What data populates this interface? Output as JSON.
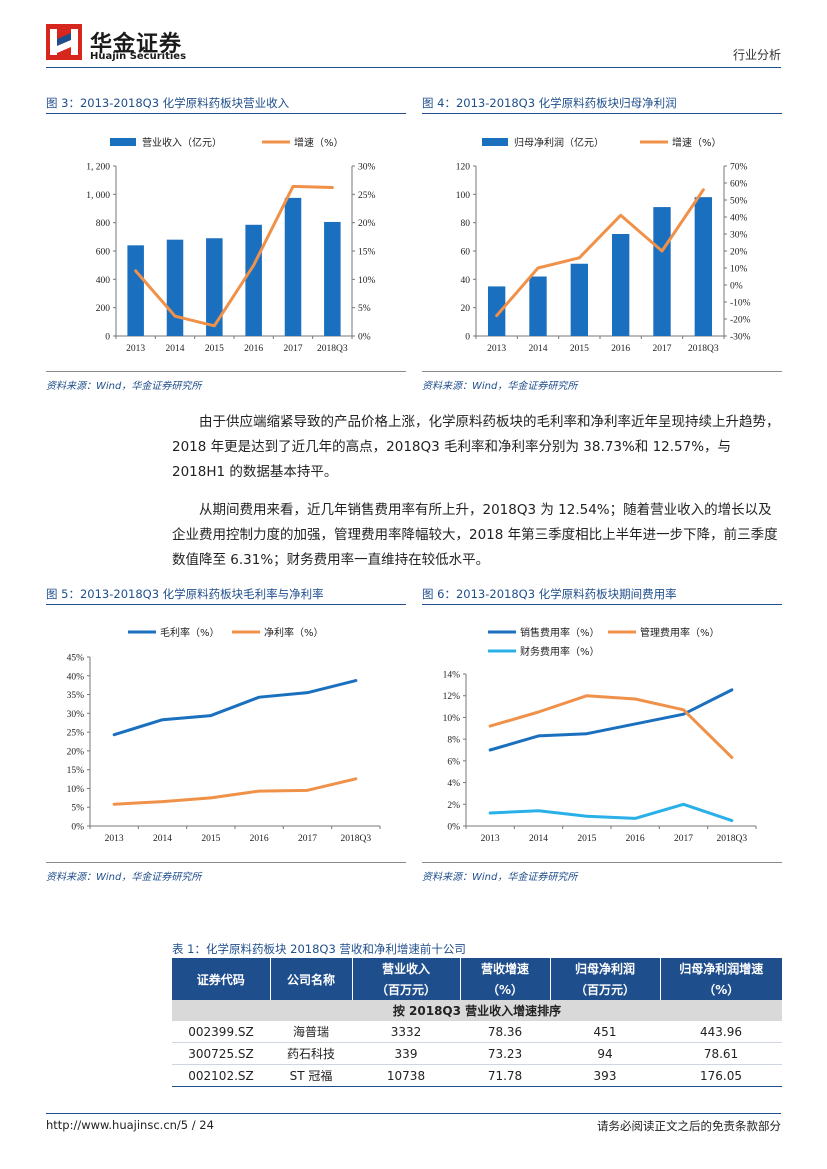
{
  "header": {
    "brand_cn": "华金证券",
    "brand_en": "Huajin Securities",
    "report_type": "行业分析"
  },
  "colors": {
    "navy": "#1f4e8c",
    "bar": "#1a6fbf",
    "orange": "#f0914a",
    "cyan": "#2ab0e8"
  },
  "figures": {
    "fig3": {
      "title": "图 3：2013-2018Q3 化学原料药板块营业收入",
      "source": "资料来源：Wind，华金证券研究所"
    },
    "fig4": {
      "title": "图 4：2013-2018Q3 化学原料药板块归母净利润",
      "source": "资料来源：Wind，华金证券研究所"
    },
    "fig5": {
      "title": "图 5：2013-2018Q3 化学原料药板块毛利率与净利率",
      "source": "资料来源：Wind，华金证券研究所"
    },
    "fig6": {
      "title": "图 6：2013-2018Q3 化学原料药板块期间费用率",
      "source": "资料来源：Wind，华金证券研究所"
    }
  },
  "paragraphs": {
    "p1": "由于供应端缩紧导致的产品价格上涨，化学原料药板块的毛利率和净利率近年呈现持续上升趋势，2018 年更是达到了近几年的高点，2018Q3 毛利率和净利率分别为 38.73%和 12.57%，与 2018H1 的数据基本持平。",
    "p2": "从期间费用来看，近几年销售费用率有所上升，2018Q3 为 12.54%；随着营业收入的增长以及企业费用控制力度的加强，管理费用率降幅较大，2018 年第三季度相比上半年进一步下降，前三季度数值降至 6.31%；财务费用率一直维持在较低水平。"
  },
  "chart_data": [
    {
      "id": "fig3",
      "type": "bar+line",
      "categories": [
        "2013",
        "2014",
        "2015",
        "2016",
        "2017",
        "2018Q3"
      ],
      "series": [
        {
          "name": "营业收入（亿元）",
          "type": "bar",
          "axis": "left",
          "values": [
            640,
            680,
            690,
            785,
            975,
            805
          ]
        },
        {
          "name": "增速（%）",
          "type": "line",
          "axis": "right",
          "values": [
            11.5,
            3.5,
            1.8,
            12.5,
            26.4,
            26.2
          ]
        }
      ],
      "left_axis": {
        "ticks": [
          "0",
          "200",
          "400",
          "600",
          "800",
          "1, 000",
          "1, 200"
        ],
        "range": [
          0,
          1200
        ]
      },
      "right_axis": {
        "ticks": [
          "0%",
          "5%",
          "10%",
          "15%",
          "20%",
          "25%",
          "30%"
        ],
        "range": [
          0,
          30
        ]
      }
    },
    {
      "id": "fig4",
      "type": "bar+line",
      "categories": [
        "2013",
        "2014",
        "2015",
        "2016",
        "2017",
        "2018Q3"
      ],
      "series": [
        {
          "name": "归母净利润（亿元）",
          "type": "bar",
          "axis": "left",
          "values": [
            35,
            42,
            51,
            72,
            91,
            98
          ]
        },
        {
          "name": "增速（%）",
          "type": "line",
          "axis": "right",
          "values": [
            -18,
            10,
            16,
            41,
            20,
            56
          ]
        }
      ],
      "left_axis": {
        "ticks": [
          "0",
          "20",
          "40",
          "60",
          "80",
          "100",
          "120"
        ],
        "range": [
          0,
          120
        ]
      },
      "right_axis": {
        "ticks": [
          "-30%",
          "-20%",
          "-10%",
          "0%",
          "10%",
          "20%",
          "30%",
          "40%",
          "50%",
          "60%",
          "70%"
        ],
        "range": [
          -30,
          70
        ]
      }
    },
    {
      "id": "fig5",
      "type": "line",
      "categories": [
        "2013",
        "2014",
        "2015",
        "2016",
        "2017",
        "2018Q3"
      ],
      "series": [
        {
          "name": "毛利率（%）",
          "values": [
            24.3,
            28.3,
            29.4,
            34.3,
            35.5,
            38.73
          ]
        },
        {
          "name": "净利率（%）",
          "values": [
            5.8,
            6.5,
            7.5,
            9.3,
            9.5,
            12.57
          ]
        }
      ],
      "left_axis": {
        "ticks": [
          "0%",
          "5%",
          "10%",
          "15%",
          "20%",
          "25%",
          "30%",
          "35%",
          "40%",
          "45%"
        ],
        "range": [
          0,
          45
        ]
      }
    },
    {
      "id": "fig6",
      "type": "line",
      "categories": [
        "2013",
        "2014",
        "2015",
        "2016",
        "2017",
        "2018Q3"
      ],
      "series": [
        {
          "name": "销售费用率（%）",
          "values": [
            7.0,
            8.3,
            8.5,
            9.4,
            10.3,
            12.54
          ]
        },
        {
          "name": "管理费用率（%）",
          "values": [
            9.2,
            10.5,
            12.0,
            11.7,
            10.7,
            6.31
          ]
        },
        {
          "name": "财务费用率（%）",
          "values": [
            1.2,
            1.4,
            0.9,
            0.7,
            2.0,
            0.5
          ]
        }
      ],
      "left_axis": {
        "ticks": [
          "0%",
          "2%",
          "4%",
          "6%",
          "8%",
          "10%",
          "12%",
          "14%"
        ],
        "range": [
          0,
          14
        ]
      }
    }
  ],
  "table": {
    "title": "表 1：化学原料药板块 2018Q3 营收和净利增速前十公司",
    "headers": [
      "证券代码",
      "公司名称",
      "营业收入",
      "营收增速",
      "归母净利润",
      "归母净利润增速"
    ],
    "units": [
      "（百万元）",
      "（%）",
      "（百万元）",
      "（%）"
    ],
    "subheader": "按 2018Q3 营业收入增速排序",
    "rows": [
      [
        "002399.SZ",
        "海普瑞",
        "3332",
        "78.36",
        "451",
        "443.96"
      ],
      [
        "300725.SZ",
        "药石科技",
        "339",
        "73.23",
        "94",
        "78.61"
      ],
      [
        "002102.SZ",
        "ST 冠福",
        "10738",
        "71.78",
        "393",
        "176.05"
      ]
    ]
  },
  "footer": {
    "left": "http://www.huajinsc.cn/5 / 24",
    "right": "请务必阅读正文之后的免责条款部分"
  }
}
